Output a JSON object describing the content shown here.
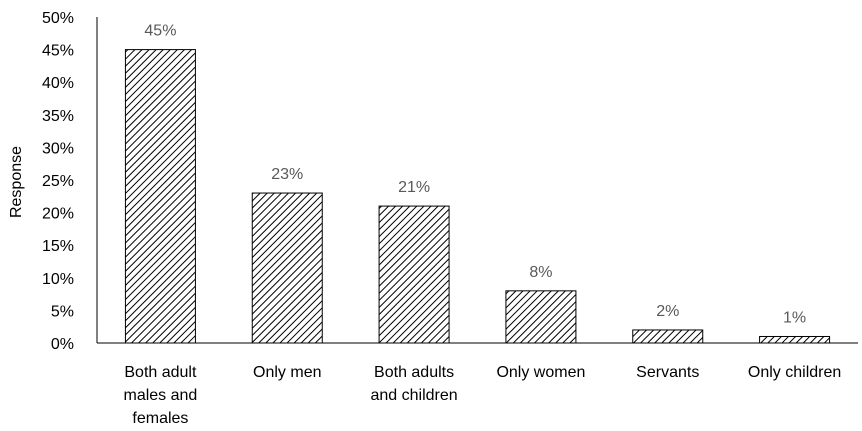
{
  "chart_data": {
    "type": "bar",
    "title": "",
    "xlabel": "",
    "ylabel": "Response",
    "ylim": [
      0,
      50
    ],
    "yticks": [
      "0%",
      "5%",
      "10%",
      "15%",
      "20%",
      "25%",
      "30%",
      "35%",
      "40%",
      "45%",
      "50%"
    ],
    "categories": [
      [
        "Both adult",
        "males and",
        "females"
      ],
      [
        "Only men"
      ],
      [
        "Both adults",
        "and children"
      ],
      [
        "Only women"
      ],
      [
        "Servants"
      ],
      [
        "Only children"
      ]
    ],
    "values": [
      45,
      23,
      21,
      8,
      2,
      1
    ],
    "data_labels": [
      "45%",
      "23%",
      "21%",
      "8%",
      "2%",
      "1%"
    ],
    "grid": false,
    "legend": "none",
    "bar_pattern": "diagonal-hatch",
    "colors": {
      "bar_stroke": "#000000",
      "hatch": "#000000",
      "data_label": "#595959",
      "axis": "#000000"
    }
  }
}
